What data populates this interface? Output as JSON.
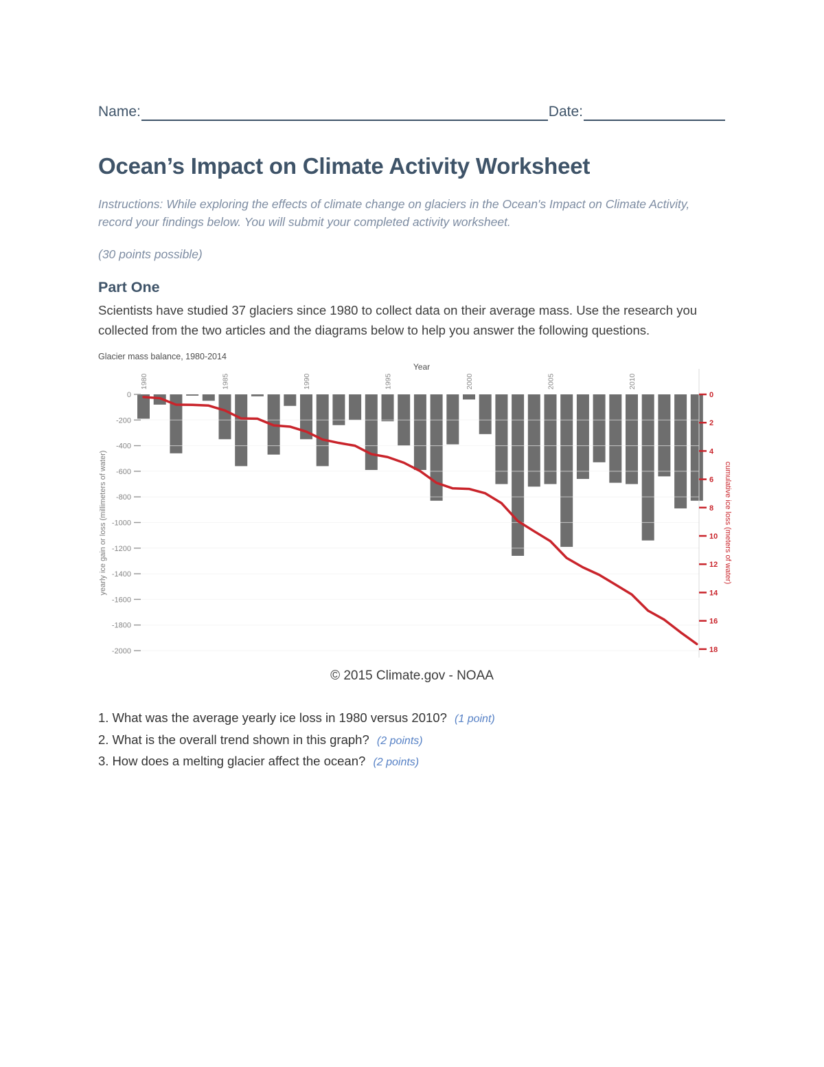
{
  "page": {
    "name_label": "Name:",
    "date_label": "Date:",
    "title": "Ocean’s Impact on Climate Activity Worksheet",
    "instructions": "Instructions: While exploring the effects of climate change on glaciers in the Ocean's Impact on Climate Activity, record your findings below. You will submit your completed activity worksheet.",
    "points_possible": "(30 points possible)",
    "part_one_heading": "Part One",
    "part_one_intro": "Scientists have studied 37 glaciers since 1980 to collect data on their average mass. Use the research you collected from the two articles and the diagrams below to help you answer the following questions.",
    "caption": "© 2015 Climate.gov - NOAA"
  },
  "questions": [
    {
      "num": "1.",
      "text": "What was the average yearly ice loss in 1980 versus 2010?",
      "points": "(1 point)"
    },
    {
      "num": "2.",
      "text": "What is the overall trend shown in this graph?",
      "points": "(2 points)"
    },
    {
      "num": "3.",
      "text": "How does a melting glacier affect the ocean?",
      "points": "(2 points)"
    }
  ],
  "colors": {
    "heading_slate": "#3e5368",
    "instructions_gray_blue": "#7d8ca2",
    "body_text": "#3d3d3d",
    "points_blue": "#5580c5",
    "bar_gray": "#6e6e6e",
    "line_red": "#c9242b",
    "axis_text_gray": "#858585"
  },
  "chart_data": {
    "type": "bar",
    "title": "Glacier mass balance, 1980-2014",
    "xlabel": "Year",
    "ylabel_left": "yearly ice gain or loss  (millimeters of water)",
    "ylabel_right": "cumulative ice loss (meters of water)",
    "x": [
      1980,
      1981,
      1982,
      1983,
      1984,
      1985,
      1986,
      1987,
      1988,
      1989,
      1990,
      1991,
      1992,
      1993,
      1994,
      1995,
      1996,
      1997,
      1998,
      1999,
      2000,
      2001,
      2002,
      2003,
      2004,
      2005,
      2006,
      2007,
      2008,
      2009,
      2010,
      2011,
      2012,
      2013,
      2014
    ],
    "series": [
      {
        "name": "yearly ice gain or loss (mm of water)",
        "type": "bar",
        "values": [
          -190,
          -80,
          -460,
          -10,
          -50,
          -350,
          -560,
          -15,
          -470,
          -90,
          -350,
          -560,
          -240,
          -200,
          -590,
          -210,
          -400,
          -590,
          -830,
          -390,
          -40,
          -310,
          -700,
          -1260,
          -720,
          -700,
          -1190,
          -660,
          -530,
          -690,
          -700,
          -1140,
          -640,
          -890,
          -830
        ]
      },
      {
        "name": "cumulative ice loss (m of water)",
        "type": "line",
        "values": [
          -0.19,
          -0.27,
          -0.73,
          -0.74,
          -0.79,
          -1.14,
          -1.7,
          -1.72,
          -2.19,
          -2.28,
          -2.63,
          -3.19,
          -3.43,
          -3.63,
          -4.22,
          -4.43,
          -4.83,
          -5.42,
          -6.25,
          -6.64,
          -6.68,
          -6.99,
          -7.69,
          -8.95,
          -9.67,
          -10.37,
          -11.56,
          -12.22,
          -12.75,
          -13.44,
          -14.14,
          -15.28,
          -15.92,
          -16.81,
          -17.64
        ]
      }
    ],
    "ylim_left": [
      -2000,
      0
    ],
    "ylim_right": [
      -18,
      0
    ],
    "left_ticks": [
      0,
      -200,
      -400,
      -600,
      -800,
      -1000,
      -1200,
      -1400,
      -1600,
      -1800,
      -2000
    ],
    "right_ticks": [
      0,
      2,
      4,
      6,
      8,
      10,
      12,
      14,
      16,
      18
    ],
    "x_ticks": [
      1980,
      1985,
      1990,
      1995,
      2000,
      2005,
      2010
    ],
    "grid": true,
    "legend": "none",
    "bar_color": "#6e6e6e",
    "line_color": "#c9242b"
  }
}
